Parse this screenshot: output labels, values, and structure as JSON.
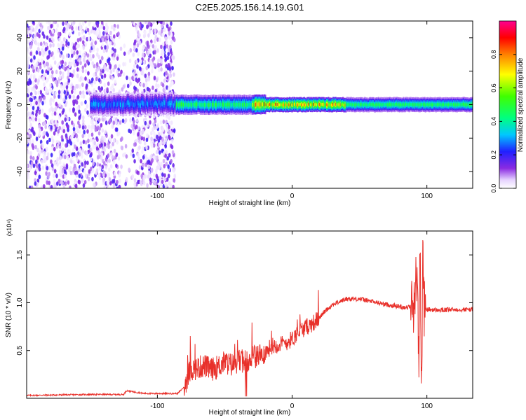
{
  "title": "C2E5.2025.156.14.19.G01",
  "chart_data": [
    {
      "type": "heatmap",
      "xlabel": "Height of straight line (km)",
      "ylabel": "Frequency (Hz)",
      "xlim": [
        -197,
        134
      ],
      "ylim": [
        -50,
        50
      ],
      "xticks": [
        -100,
        0,
        100
      ],
      "yticks": [
        -40,
        -20,
        0,
        20,
        40
      ],
      "colorbar": {
        "label": "Normalized spectral amplitude",
        "range": [
          0,
          1
        ],
        "ticks": [
          "0.0",
          "0.2",
          "0.4",
          "0.6",
          "0.8"
        ],
        "colormap": "rainbow (white-violet-blue-cyan-green-yellow-red-magenta)"
      },
      "features": [
        {
          "x_range": [
            -197,
            -87
          ],
          "description_level": 0.12,
          "frequency_span": [
            -50,
            50
          ]
        },
        {
          "x_range": [
            -145,
            -85
          ],
          "peak_level": 0.3,
          "frequency_center": 2
        },
        {
          "x_range": [
            -87,
            134
          ],
          "peak_level": 0.5,
          "frequency_center": 0
        },
        {
          "x_range": [
            -30,
            40
          ],
          "peak_level": 0.9,
          "frequency_center": 0
        }
      ]
    },
    {
      "type": "line",
      "xlabel": "Height of straight line (km)",
      "ylabel": "SNR (10 * v/v)",
      "y_multiplier": "(x10⁴)",
      "xlim": [
        -197,
        134
      ],
      "ylim": [
        0,
        1.75
      ],
      "xticks": [
        -100,
        0,
        100
      ],
      "yticks": [
        0.5,
        1.0,
        1.5
      ],
      "series": [
        {
          "color": "#e8302a",
          "x": [
            -197,
            -150,
            -125,
            -123,
            -110,
            -85,
            -80,
            -77,
            -75,
            -70,
            -65,
            -60,
            -55,
            -50,
            -45,
            -40,
            -35,
            -30,
            -25,
            -20,
            -15,
            -10,
            -5,
            0,
            5,
            10,
            15,
            20,
            25,
            30,
            40,
            50,
            60,
            70,
            80,
            85,
            90,
            93,
            94,
            95,
            96,
            97,
            98,
            100,
            110,
            120,
            134
          ],
          "y": [
            0.03,
            0.04,
            0.04,
            0.08,
            0.05,
            0.05,
            0.12,
            0.25,
            0.3,
            0.32,
            0.34,
            0.3,
            0.33,
            0.38,
            0.35,
            0.38,
            0.4,
            0.42,
            0.45,
            0.48,
            0.55,
            0.56,
            0.58,
            0.62,
            0.7,
            0.74,
            0.78,
            0.84,
            0.92,
            0.98,
            1.04,
            1.04,
            1.01,
            0.98,
            0.96,
            0.95,
            0.97,
            1.35,
            0.2,
            1.72,
            0.05,
            1.5,
            0.93,
            0.93,
            0.92,
            0.93,
            0.93
          ]
        }
      ]
    }
  ]
}
